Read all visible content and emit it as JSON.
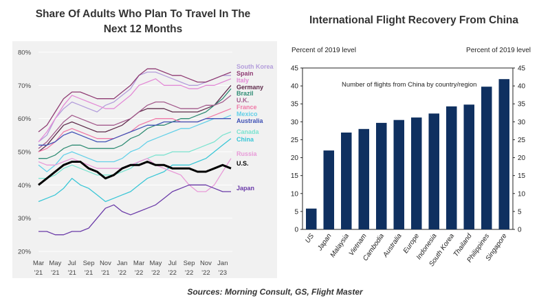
{
  "titles": {
    "left_line1": "Share Of Adults Who Plan To Travel In The",
    "left_line2": "Next 12 Months",
    "right": "International Flight Recovery From China"
  },
  "source": "Sources: Morning Consult, GS, Flight Master",
  "chart_data": [
    {
      "type": "line",
      "title": "Share Of Adults Who Plan To Travel In The Next 12 Months",
      "x_ticks": [
        {
          "month": "Mar",
          "year": "'21"
        },
        {
          "month": "May",
          "year": "'21"
        },
        {
          "month": "Jul",
          "year": "'21"
        },
        {
          "month": "Sep",
          "year": "'21"
        },
        {
          "month": "Nov",
          "year": "'21"
        },
        {
          "month": "Jan",
          "year": "'22"
        },
        {
          "month": "Mar",
          "year": "'22"
        },
        {
          "month": "May",
          "year": "'22"
        },
        {
          "month": "Jul",
          "year": "'22"
        },
        {
          "month": "Sep",
          "year": "'22"
        },
        {
          "month": "Nov",
          "year": "'22"
        },
        {
          "month": "Jan",
          "year": "'23"
        }
      ],
      "y_ticks": [
        "20%",
        "30%",
        "40%",
        "50%",
        "60%",
        "70%",
        "80%"
      ],
      "ylim": [
        20,
        80
      ],
      "x_months": [
        "2021-03",
        "2021-04",
        "2021-05",
        "2021-06",
        "2021-07",
        "2021-08",
        "2021-09",
        "2021-10",
        "2021-11",
        "2021-12",
        "2022-01",
        "2022-02",
        "2022-03",
        "2022-04",
        "2022-05",
        "2022-06",
        "2022-07",
        "2022-08",
        "2022-09",
        "2022-10",
        "2022-11",
        "2022-12",
        "2023-01",
        "2023-02"
      ],
      "series": [
        {
          "name": "South Korea",
          "color": "#b39ddb",
          "width": 1.3,
          "values": [
            53,
            55,
            60,
            63,
            65,
            64,
            63,
            62,
            64,
            65,
            67,
            69,
            73,
            74,
            74,
            73,
            72,
            71,
            70,
            70,
            71,
            72,
            73,
            73
          ]
        },
        {
          "name": "Spain",
          "color": "#8e3a72",
          "width": 1.3,
          "values": [
            56,
            58,
            62,
            66,
            68,
            68,
            67,
            66,
            66,
            66,
            68,
            70,
            73,
            75,
            75,
            74,
            73,
            73,
            72,
            71,
            71,
            72,
            73,
            74
          ]
        },
        {
          "name": "Italy",
          "color": "#e38ad6",
          "width": 1.3,
          "values": [
            53,
            56,
            60,
            64,
            67,
            66,
            65,
            64,
            63,
            63,
            65,
            67,
            70,
            71,
            72,
            70,
            70,
            70,
            69,
            69,
            70,
            70,
            71,
            72
          ]
        },
        {
          "name": "Germany",
          "color": "#5e2a4a",
          "width": 1.3,
          "values": [
            50,
            52,
            55,
            58,
            59,
            58,
            57,
            56,
            56,
            57,
            58,
            60,
            62,
            63,
            63,
            63,
            62,
            62,
            62,
            62,
            63,
            64,
            67,
            70
          ]
        },
        {
          "name": "Brazil",
          "color": "#2e8b73",
          "width": 1.3,
          "values": [
            48,
            48,
            49,
            51,
            52,
            52,
            51,
            51,
            51,
            51,
            52,
            54,
            55,
            57,
            58,
            58,
            59,
            60,
            60,
            61,
            62,
            64,
            66,
            69
          ]
        },
        {
          "name": "U.K.",
          "color": "#a35a8c",
          "width": 1.3,
          "values": [
            51,
            53,
            56,
            59,
            61,
            60,
            59,
            58,
            58,
            58,
            59,
            60,
            62,
            64,
            65,
            65,
            64,
            63,
            63,
            63,
            64,
            64,
            65,
            67
          ]
        },
        {
          "name": "France",
          "color": "#f07aa8",
          "width": 1.3,
          "values": [
            50,
            51,
            53,
            56,
            57,
            56,
            55,
            54,
            54,
            54,
            55,
            56,
            58,
            59,
            60,
            60,
            60,
            59,
            59,
            59,
            60,
            61,
            62,
            63
          ]
        },
        {
          "name": "Mexico",
          "color": "#63d0e8",
          "width": 1.3,
          "values": [
            46,
            44,
            46,
            49,
            50,
            49,
            48,
            47,
            47,
            47,
            48,
            50,
            51,
            53,
            54,
            55,
            56,
            57,
            57,
            58,
            59,
            60,
            60,
            61
          ]
        },
        {
          "name": "Australia",
          "color": "#3f51b5",
          "width": 1.3,
          "values": [
            52,
            52,
            53,
            55,
            56,
            55,
            54,
            53,
            53,
            54,
            55,
            56,
            57,
            58,
            58,
            59,
            59,
            59,
            59,
            59,
            60,
            60,
            60,
            60
          ]
        },
        {
          "name": "Canada",
          "color": "#7be3d0",
          "width": 1.3,
          "values": [
            42,
            42,
            43,
            45,
            46,
            45,
            44,
            43,
            43,
            43,
            44,
            45,
            47,
            48,
            49,
            49,
            50,
            50,
            50,
            51,
            52,
            53,
            55,
            56
          ]
        },
        {
          "name": "China",
          "color": "#38c6d6",
          "width": 1.3,
          "values": [
            35,
            36,
            37,
            39,
            42,
            40,
            39,
            37,
            35,
            36,
            37,
            38,
            40,
            42,
            43,
            44,
            46,
            46,
            46,
            47,
            48,
            50,
            52,
            54
          ]
        },
        {
          "name": "Russia",
          "color": "#e89ad8",
          "width": 1.3,
          "values": [
            47,
            46,
            46,
            47,
            48,
            47,
            46,
            45,
            45,
            45,
            45,
            46,
            47,
            48,
            46,
            45,
            44,
            43,
            40,
            38,
            38,
            40,
            44,
            48
          ]
        },
        {
          "name": "U.S.",
          "color": "#000000",
          "width": 3,
          "values": [
            40,
            42,
            44,
            46,
            47,
            47,
            45,
            44,
            42,
            43,
            45,
            46,
            46,
            47,
            46,
            46,
            45,
            45,
            45,
            44,
            44,
            45,
            46,
            45
          ]
        },
        {
          "name": "Japan",
          "color": "#6a3aa8",
          "width": 1.3,
          "values": [
            26,
            26,
            25,
            25,
            26,
            26,
            27,
            30,
            33,
            34,
            32,
            31,
            32,
            33,
            34,
            36,
            38,
            39,
            40,
            40,
            40,
            39,
            38,
            38
          ]
        }
      ]
    },
    {
      "type": "bar",
      "title": "International Flight Recovery From China",
      "annotation": "Number of flights from China by country/region",
      "ylabel_left": "Percent of 2019 level",
      "ylabel_right": "Percent of 2019 level",
      "ylim": [
        0,
        45
      ],
      "y_ticks": [
        0,
        5,
        10,
        15,
        20,
        25,
        30,
        35,
        40,
        45
      ],
      "categories": [
        "US",
        "Japan",
        "Malaysia",
        "Vietnam",
        "Cambodia",
        "Australia",
        "Europe",
        "Indonesia",
        "South Korea",
        "Thailand",
        "Philippines",
        "Singapore"
      ],
      "values": [
        5.8,
        22,
        27,
        28,
        29.7,
        30.5,
        31.2,
        32.3,
        34.3,
        34.8,
        39.8,
        41.9
      ],
      "bar_color": "#0f3060"
    }
  ]
}
